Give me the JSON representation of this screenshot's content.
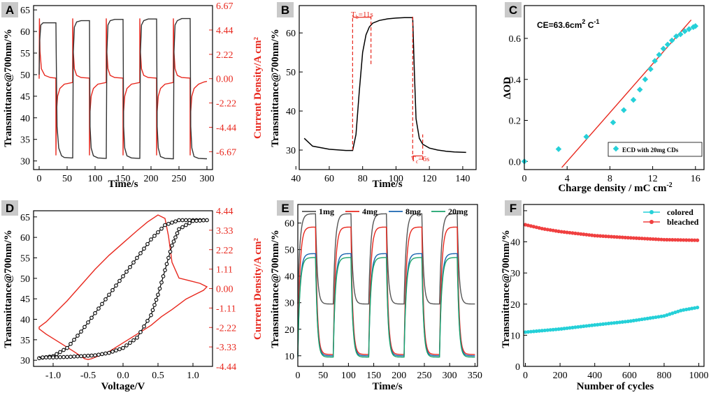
{
  "chart_data": [
    {
      "id": "A",
      "panel_label": "A",
      "type": "line",
      "xlabel": "Time/s",
      "ylabel": "Transmittance@700nm/%",
      "y2label": "Current Density/A cm²",
      "xlim": [
        -10,
        310
      ],
      "ylim": [
        28,
        66
      ],
      "y2lim": [
        -8.3,
        6.67
      ],
      "xticks": [
        "0",
        "50",
        "100",
        "150",
        "200",
        "250",
        "300"
      ],
      "yticks": [
        "30",
        "35",
        "40",
        "45",
        "50",
        "55",
        "60",
        "65"
      ],
      "y2ticks": [
        "6.67",
        "4.44",
        "2.22",
        "0.00",
        "-2.22",
        "-4.44",
        "-6.67"
      ],
      "series": [
        {
          "name": "Transmittance",
          "color": "#333333",
          "x": [
            0,
            1,
            3,
            7,
            15,
            30,
            30.5,
            32,
            35,
            40,
            45,
            58,
            60,
            61,
            63,
            67,
            75,
            88,
            90,
            91,
            93,
            97,
            105,
            118,
            120,
            121,
            123,
            127,
            135,
            148,
            150,
            151,
            153,
            157,
            165,
            178,
            180,
            181,
            183,
            187,
            195,
            208,
            210,
            211,
            213,
            217,
            225,
            238,
            240,
            241,
            243,
            247,
            255,
            268,
            270,
            271,
            273,
            277,
            285,
            298,
            300
          ],
          "y": [
            50,
            58,
            61.5,
            62,
            62,
            62,
            55,
            38,
            33,
            31.2,
            30.8,
            30.7,
            30.7,
            55,
            61,
            62.2,
            62.5,
            62.5,
            62.5,
            38,
            33,
            31.2,
            30.7,
            30.6,
            30.6,
            55,
            61.5,
            62.5,
            62.8,
            62.8,
            62.8,
            38,
            33,
            31.2,
            30.7,
            30.6,
            30.6,
            55,
            61.5,
            62.5,
            62.9,
            62.9,
            62.9,
            38,
            33,
            31,
            30.6,
            30.5,
            30.5,
            55,
            61.5,
            62.5,
            63,
            63,
            63,
            38,
            33,
            31,
            30.6,
            30.5,
            30.5
          ]
        },
        {
          "name": "Current density",
          "color": "#e8281e",
          "x": [
            0,
            0.5,
            1.5,
            4,
            10,
            20,
            29.9,
            30,
            31,
            33,
            37,
            45,
            59.9,
            60,
            61,
            63,
            67,
            75,
            89.9,
            90,
            91,
            93,
            97,
            105,
            119.9,
            120,
            121,
            123,
            127,
            135,
            149.9,
            150,
            151,
            153,
            157,
            165,
            179.9,
            180,
            181,
            183,
            187,
            195,
            209.9,
            210,
            211,
            213,
            217,
            225,
            239.9,
            240,
            241,
            243,
            247,
            255,
            269.9,
            270,
            271,
            273,
            277,
            285,
            295,
            300
          ],
          "y": [
            0,
            5.5,
            2.5,
            0.9,
            0.3,
            0.1,
            0.05,
            -7.0,
            -3.0,
            -1.6,
            -0.9,
            -0.5,
            -0.35,
            5.5,
            2.5,
            0.9,
            0.3,
            0.1,
            0.05,
            -7.0,
            -3.0,
            -1.6,
            -0.9,
            -0.5,
            -0.35,
            5.5,
            2.5,
            0.9,
            0.3,
            0.1,
            0.05,
            -7.0,
            -3.0,
            -1.6,
            -0.9,
            -0.5,
            -0.35,
            5.5,
            2.5,
            0.9,
            0.3,
            0.1,
            0.05,
            -7.0,
            -3.0,
            -1.6,
            -0.9,
            -0.5,
            -0.35,
            5.5,
            2.5,
            0.9,
            0.3,
            0.1,
            0.05,
            -7.0,
            -3.0,
            -1.6,
            -0.9,
            -0.5,
            -0.3,
            -0.25
          ]
        }
      ]
    },
    {
      "id": "B",
      "panel_label": "B",
      "type": "line",
      "xlabel": "Time/s",
      "ylabel": "Transmittance@700nm/%",
      "xlim": [
        42,
        148
      ],
      "ylim": [
        25,
        67
      ],
      "xticks": [
        "40",
        "60",
        "80",
        "100",
        "120",
        "140"
      ],
      "yticks": [
        "30",
        "40",
        "50",
        "60"
      ],
      "series": [
        {
          "name": "Transmittance",
          "color": "#000000",
          "x": [
            45,
            50,
            60,
            70,
            74,
            76,
            78,
            80,
            82,
            84,
            86,
            90,
            95,
            100,
            105,
            110,
            111,
            112,
            114,
            116,
            120,
            125,
            130,
            135,
            142
          ],
          "y": [
            33,
            31,
            30.2,
            29.9,
            29.9,
            34,
            45,
            55,
            59.5,
            61.5,
            62.5,
            63.2,
            63.6,
            63.8,
            63.9,
            63.9,
            50,
            38,
            33,
            31.5,
            30.5,
            30,
            29.7,
            29.5,
            29.4
          ]
        }
      ],
      "annotations": {
        "th": "T",
        "th_sub": "b",
        "th_val": "=11s",
        "tc": "T",
        "tc_sub": "c",
        "tc_val": "=6s"
      },
      "marker_times": [
        74,
        85,
        110,
        116
      ]
    },
    {
      "id": "C",
      "panel_label": "C",
      "type": "scatter",
      "xlabel": "Charge density / mC cm",
      "xlabel_sup": "-2",
      "ylabel": "ΔOD",
      "xlim": [
        0,
        16.8
      ],
      "ylim": [
        -0.04,
        0.76
      ],
      "xticks": [
        "0",
        "4",
        "8",
        "12",
        "16"
      ],
      "yticks": [
        "0.0",
        "0.2",
        "0.4",
        "0.6"
      ],
      "ce_text": "CE=63.6cm",
      "ce_sup1": "2",
      "ce_mid": " C",
      "ce_sup2": "-1",
      "legend": "ECD with 20mg CDs",
      "fit_line": {
        "x": [
          3.5,
          15.6
        ],
        "y": [
          -0.03,
          0.69
        ],
        "color": "#e8281e"
      },
      "series": [
        {
          "name": "ECD with 20mg CDs",
          "color": "#25d0d8",
          "x": [
            0,
            3.2,
            5.8,
            8.3,
            9.3,
            10.2,
            10.8,
            11.3,
            11.8,
            12.2,
            12.6,
            13.0,
            13.4,
            13.8,
            14.2,
            14.6,
            15.0,
            15.4,
            15.8,
            16.0
          ],
          "y": [
            0,
            0.06,
            0.12,
            0.19,
            0.25,
            0.3,
            0.35,
            0.4,
            0.45,
            0.49,
            0.52,
            0.55,
            0.57,
            0.59,
            0.61,
            0.62,
            0.635,
            0.645,
            0.655,
            0.66
          ]
        }
      ]
    },
    {
      "id": "D",
      "panel_label": "D",
      "type": "line",
      "xlabel": "Voltage/V",
      "ylabel": "Transmittance@700nm/%",
      "y2label": "Current Density/A cm²",
      "xlim": [
        -1.28,
        1.28
      ],
      "ylim": [
        28.5,
        66.5
      ],
      "y2lim": [
        -4.44,
        4.44
      ],
      "xticks": [
        "-1.0",
        "-0.5",
        "0.0",
        "0.5",
        "1.0"
      ],
      "yticks": [
        "30",
        "35",
        "40",
        "45",
        "50",
        "55",
        "60",
        "65"
      ],
      "y2ticks": [
        "4.44",
        "3.33",
        "2.22",
        "1.11",
        "0.00",
        "-1.11",
        "-2.22",
        "-3.33",
        "-4.44"
      ],
      "series": [
        {
          "name": "Transmittance (forward)",
          "color": "#000000",
          "marker": "o",
          "x": [
            -1.2,
            -1.0,
            -0.8,
            -0.6,
            -0.4,
            -0.2,
            0,
            0.2,
            0.4,
            0.6,
            0.8,
            1.0,
            1.2
          ],
          "y": [
            30.5,
            31,
            33,
            37,
            41.5,
            46,
            50.5,
            55,
            59.5,
            63,
            64.2,
            64.2,
            64.2
          ]
        },
        {
          "name": "Transmittance (reverse)",
          "color": "#000000",
          "marker": "o",
          "x": [
            1.2,
            1.0,
            0.8,
            0.7,
            0.6,
            0.5,
            0.4,
            0.2,
            0,
            -0.2,
            -0.4,
            -0.6,
            -0.8,
            -1.0,
            -1.2
          ],
          "y": [
            64.2,
            64,
            62,
            58,
            52,
            46,
            41,
            35.5,
            33,
            31.8,
            31.2,
            31,
            30.8,
            30.7,
            30.7
          ]
        },
        {
          "name": "Current density",
          "color": "#e8281e",
          "x": [
            -1.2,
            -1.1,
            -1.0,
            -0.9,
            -0.8,
            -0.6,
            -0.4,
            -0.2,
            0,
            0.2,
            0.35,
            0.5,
            0.6,
            0.65,
            0.7,
            0.8,
            0.95,
            1.1,
            1.2,
            1.15,
            1.05,
            0.9,
            0.7,
            0.55,
            0.4,
            0.2,
            0,
            -0.2,
            -0.45,
            -0.5,
            -0.55,
            -0.7,
            -0.9,
            -1.1,
            -1.2
          ],
          "y": [
            -2.2,
            -1.9,
            -1.5,
            -1.1,
            -0.7,
            0.2,
            1.1,
            1.9,
            2.6,
            3.3,
            3.8,
            4.2,
            4.0,
            3.0,
            1.5,
            0.6,
            0.45,
            0.3,
            0.1,
            -0.1,
            -0.3,
            -0.6,
            -1.2,
            -1.6,
            -2.1,
            -2.6,
            -3.1,
            -3.6,
            -4.0,
            -4.05,
            -4.0,
            -3.6,
            -3.1,
            -2.6,
            -2.3
          ]
        }
      ]
    },
    {
      "id": "E",
      "panel_label": "E",
      "type": "line",
      "xlabel": "Time/s",
      "ylabel": "Transmittance@700nm/%",
      "xlim": [
        0,
        355
      ],
      "ylim": [
        6,
        67
      ],
      "xticks": [
        "0",
        "50",
        "100",
        "150",
        "200",
        "250",
        "300",
        "350"
      ],
      "yticks": [
        "10",
        "20",
        "30",
        "40",
        "50",
        "60"
      ],
      "series": [
        {
          "name": "1mg",
          "color": "#555555",
          "high": 63.5,
          "low": 29.5
        },
        {
          "name": "4mg",
          "color": "#e8281e",
          "high": 58.5,
          "low": 10.5
        },
        {
          "name": "8mg",
          "color": "#1a64b0",
          "high": 48.5,
          "low": 10
        },
        {
          "name": "20mg",
          "color": "#1aa36b",
          "high": 47,
          "low": 9.5
        }
      ],
      "cycle_period": 70,
      "color_phase": 35
    },
    {
      "id": "F",
      "panel_label": "F",
      "type": "scatter",
      "xlabel": "Number of cycles",
      "ylabel": "Transmittance@700nm/%",
      "xlim": [
        -10,
        1030
      ],
      "ylim": [
        0,
        52
      ],
      "xticks": [
        "0",
        "200",
        "400",
        "600",
        "800",
        "1000"
      ],
      "yticks": [
        "0",
        "10",
        "20",
        "30",
        "40",
        "50"
      ],
      "series": [
        {
          "name": "colored",
          "color": "#25d0d8",
          "x": [
            0,
            200,
            400,
            600,
            800,
            900,
            1000
          ],
          "y": [
            11,
            12,
            13.3,
            14.5,
            16.2,
            18,
            19
          ]
        },
        {
          "name": "bleached",
          "color": "#f04040",
          "x": [
            0,
            100,
            200,
            400,
            600,
            800,
            1000
          ],
          "y": [
            45.5,
            44.2,
            43.3,
            42,
            41.3,
            40.7,
            40.5
          ]
        }
      ]
    }
  ]
}
